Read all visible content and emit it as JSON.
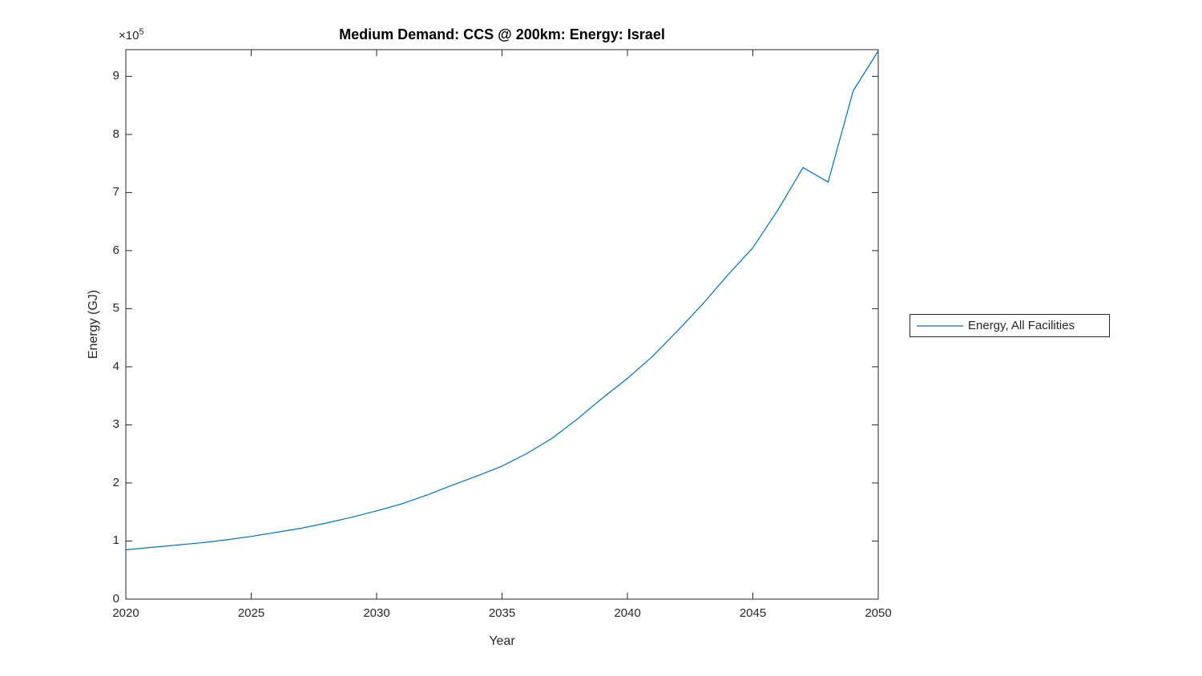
{
  "figure": {
    "background": "#ffffff",
    "axis_color": "#262626"
  },
  "chart_data": {
    "type": "line",
    "title": "Medium Demand: CCS @ 200km: Energy: Israel",
    "xlabel": "Year",
    "ylabel": "Energy (GJ)",
    "y_exponent": {
      "base": "×10",
      "power": "5"
    },
    "grid": false,
    "box": true,
    "tick_direction": "in",
    "legend_position": "outside-right",
    "xlim": [
      2020,
      2050
    ],
    "ylim": [
      0,
      946000
    ],
    "x_ticks": [
      2020,
      2025,
      2030,
      2035,
      2040,
      2045,
      2050
    ],
    "x_tick_labels": [
      "2020",
      "2025",
      "2030",
      "2035",
      "2040",
      "2045",
      "2050"
    ],
    "y_ticks": [
      0,
      100000,
      200000,
      300000,
      400000,
      500000,
      600000,
      700000,
      800000,
      900000
    ],
    "y_tick_labels": [
      "0",
      "1",
      "2",
      "3",
      "4",
      "5",
      "6",
      "7",
      "8",
      "9"
    ],
    "x": [
      2020,
      2021,
      2022,
      2023,
      2024,
      2025,
      2026,
      2027,
      2028,
      2029,
      2030,
      2031,
      2032,
      2033,
      2034,
      2035,
      2036,
      2037,
      2038,
      2039,
      2040,
      2041,
      2042,
      2043,
      2044,
      2045,
      2046,
      2047,
      2048,
      2049,
      2050
    ],
    "series": [
      {
        "name": "Energy, All Facilities",
        "color": "#0072BD",
        "values": [
          85000,
          89000,
          93000,
          97000,
          102000,
          108000,
          115000,
          122000,
          131000,
          141000,
          152000,
          164000,
          179000,
          196000,
          212000,
          229000,
          251000,
          277000,
          310000,
          346000,
          380000,
          418000,
          462000,
          508000,
          558000,
          605000,
          670000,
          743000,
          718000,
          875000,
          944000
        ]
      }
    ]
  }
}
